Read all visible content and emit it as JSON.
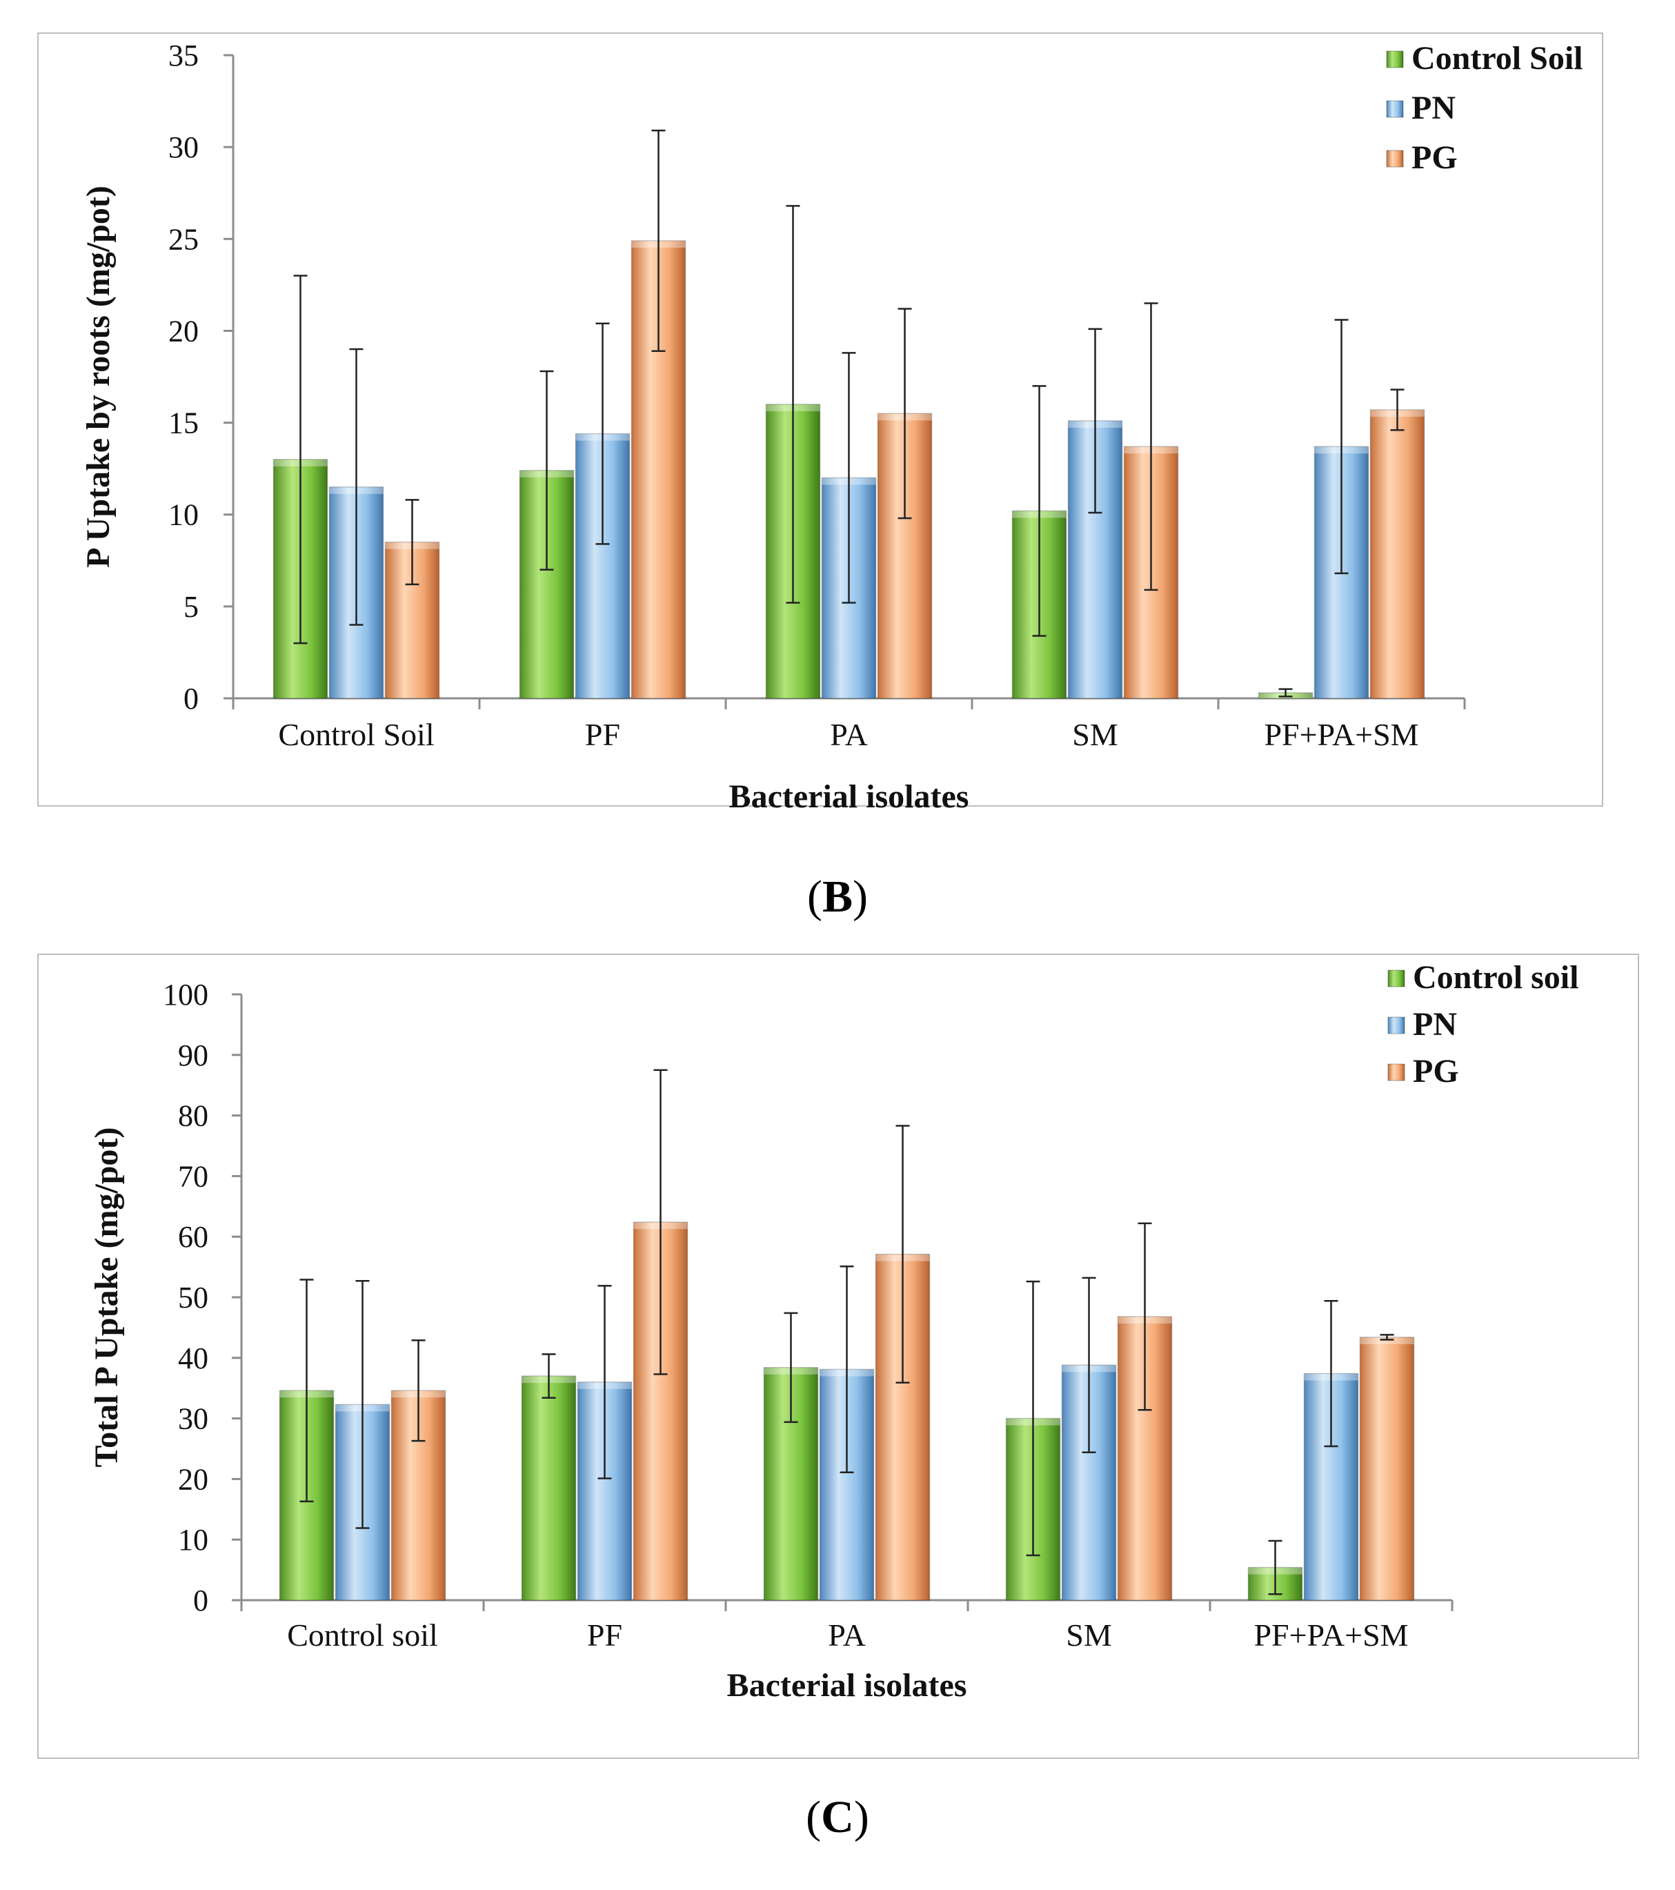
{
  "figure_captions": [
    {
      "open": "(",
      "letter": "B",
      "close": ")"
    },
    {
      "open": "(",
      "letter": "C",
      "close": ")"
    }
  ],
  "colors": {
    "control": "#7CC43E",
    "pn": "#7FB6E6",
    "pg": "#F2A56E",
    "frame": "#bdbdbd",
    "axis": "#8c8c8c"
  },
  "chart_data": [
    {
      "type": "bar",
      "title": "",
      "xlabel": "Bacterial isolates",
      "ylabel": "P Uptake by roots (mg/pot)",
      "ylim": [
        0,
        35
      ],
      "yticks": [
        0,
        5,
        10,
        15,
        20,
        25,
        30,
        35
      ],
      "grid": false,
      "legend_position": "top-right",
      "categories": [
        "Control Soil",
        "PF",
        "PA",
        "SM",
        "PF+PA+SM"
      ],
      "series": [
        {
          "name": "Control Soil",
          "values": [
            13.0,
            12.4,
            16.0,
            10.2,
            0.3
          ],
          "errors": [
            10.0,
            5.4,
            10.8,
            6.8,
            0.2
          ]
        },
        {
          "name": "PN",
          "values": [
            11.5,
            14.4,
            12.0,
            15.1,
            13.7
          ],
          "errors": [
            7.5,
            6.0,
            6.8,
            5.0,
            6.9
          ]
        },
        {
          "name": "PG",
          "values": [
            8.5,
            24.9,
            15.5,
            13.7,
            15.7
          ],
          "errors": [
            2.3,
            6.0,
            5.7,
            7.8,
            1.1
          ]
        }
      ]
    },
    {
      "type": "bar",
      "title": "",
      "xlabel": "Bacterial isolates",
      "ylabel": "Total P Uptake (mg/pot)",
      "ylim": [
        0,
        100
      ],
      "yticks": [
        0,
        10,
        20,
        30,
        40,
        50,
        60,
        70,
        80,
        90,
        100
      ],
      "grid": false,
      "legend_position": "top-right",
      "categories": [
        "Control soil",
        "PF",
        "PA",
        "SM",
        "PF+PA+SM"
      ],
      "series": [
        {
          "name": "Control soil",
          "values": [
            34.6,
            37.0,
            38.4,
            30.0,
            5.4
          ],
          "errors": [
            18.3,
            3.6,
            9.0,
            22.6,
            4.4
          ]
        },
        {
          "name": "PN",
          "values": [
            32.3,
            36.0,
            38.1,
            38.8,
            37.4
          ],
          "errors": [
            20.4,
            15.9,
            17.0,
            14.4,
            12.0
          ]
        },
        {
          "name": "PG",
          "values": [
            34.6,
            62.4,
            57.1,
            46.8,
            43.4
          ],
          "errors": [
            8.3,
            25.1,
            21.2,
            15.4,
            0.4
          ]
        }
      ]
    }
  ]
}
